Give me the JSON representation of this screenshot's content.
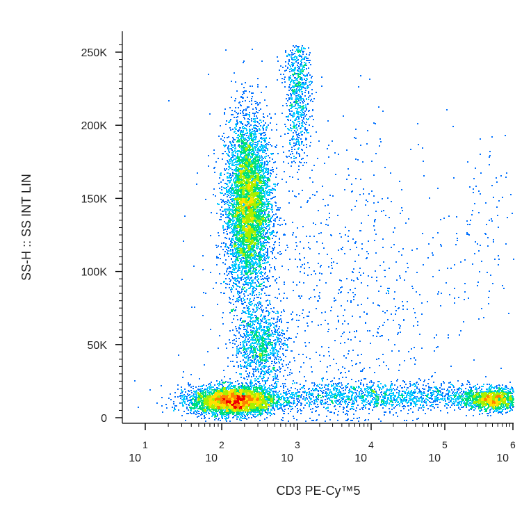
{
  "chart_data": {
    "type": "scatter",
    "subtype": "flow-cytometry density dot plot",
    "xlabel": "CD3 PE-Cy™5",
    "ylabel": "SS-H :: SS INT LIN",
    "x_scale": "log",
    "x_ticks": [
      {
        "base": "10",
        "exp": "1",
        "value": 10
      },
      {
        "base": "10",
        "exp": "2",
        "value": 100
      },
      {
        "base": "10",
        "exp": "3",
        "value": 1000
      },
      {
        "base": "10",
        "exp": "4",
        "value": 10000
      },
      {
        "base": "10",
        "exp": "5",
        "value": 100000
      },
      {
        "base": "10",
        "exp": "6",
        "value": 1000000
      }
    ],
    "y_ticks": [
      {
        "label": "0",
        "value": 0
      },
      {
        "label": "50K",
        "value": 50000
      },
      {
        "label": "100K",
        "value": 100000
      },
      {
        "label": "150K",
        "value": 150000
      },
      {
        "label": "200K",
        "value": 200000
      },
      {
        "label": "250K",
        "value": 250000
      }
    ],
    "ylim": [
      -5000,
      262000
    ],
    "grid": false,
    "legend": "none",
    "density_colors": [
      "#0000ee",
      "#0070ff",
      "#00c8ff",
      "#00e07a",
      "#a8f000",
      "#ffe000",
      "#ff8000",
      "#f00000"
    ],
    "populations": [
      {
        "x_center": 220,
        "y_center": 145000,
        "x_spread_decades": 0.15,
        "y_spread": 30000,
        "relative_count": 5200
      },
      {
        "x_center": 140,
        "y_center": 12000,
        "x_spread_decades": 0.28,
        "y_spread": 5000,
        "relative_count": 3600
      },
      {
        "x_center": 320,
        "y_center": 50000,
        "x_spread_decades": 0.17,
        "y_spread": 13000,
        "relative_count": 1000
      },
      {
        "x_center": 1000,
        "y_center": 225000,
        "x_spread_decades": 0.09,
        "y_spread": 25000,
        "relative_count": 850
      },
      {
        "x_center": 500000,
        "y_center": 13000,
        "x_spread_decades": 0.22,
        "y_spread": 4000,
        "relative_count": 1300
      },
      {
        "x_center": 10000,
        "y_center": 15000,
        "x_spread_decades": 1.0,
        "y_spread": 5000,
        "relative_count": 1700
      },
      {
        "x_center": 3000,
        "y_center": 80000,
        "x_spread_decades": 0.8,
        "y_spread": 55000,
        "relative_count": 900
      },
      {
        "x_center": 300000,
        "y_center": 120000,
        "x_spread_decades": 0.3,
        "y_spread": 35000,
        "relative_count": 110
      }
    ]
  }
}
